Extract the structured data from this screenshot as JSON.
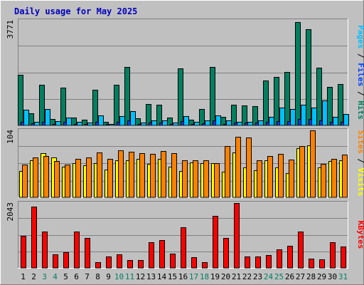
{
  "chart_data": {
    "type": "bar",
    "title": "Daily usage for May 2025",
    "days": [
      "1",
      "2",
      "3",
      "4",
      "5",
      "6",
      "7",
      "8",
      "9",
      "10",
      "11",
      "12",
      "13",
      "14",
      "15",
      "16",
      "17",
      "18",
      "19",
      "20",
      "21",
      "22",
      "23",
      "24",
      "25",
      "26",
      "27",
      "28",
      "29",
      "30",
      "31"
    ],
    "weekend_days": [
      "3",
      "4",
      "10",
      "11",
      "17",
      "18",
      "24",
      "25",
      "31"
    ],
    "panels": [
      {
        "id": "hits-panel",
        "ymax": 3771,
        "ymax_label": "3771",
        "side_label_parts": [
          {
            "text": "Pages",
            "color": "#00C0FF"
          },
          {
            "text": " / ",
            "color": "#000000"
          },
          {
            "text": "Files",
            "color": "#0040FF"
          },
          {
            "text": " / ",
            "color": "#000000"
          },
          {
            "text": "Hits",
            "color": "#008060"
          }
        ],
        "series": [
          {
            "name": "Hits",
            "color": "#008060",
            "values": [
              1810,
              440,
              1460,
              240,
              1370,
              270,
              210,
              1290,
              130,
              1450,
              2110,
              260,
              760,
              750,
              270,
              2060,
              200,
              600,
              2110,
              320,
              740,
              720,
              700,
              1610,
              1740,
              1930,
              3710,
              3460,
              2080,
              1390,
              1490
            ]
          },
          {
            "name": "Files",
            "color": "#0040FF",
            "values": [
              140,
              80,
              140,
              60,
              120,
              60,
              50,
              120,
              40,
              130,
              170,
              60,
              90,
              90,
              60,
              160,
              50,
              80,
              170,
              60,
              90,
              90,
              90,
              140,
              150,
              160,
              230,
              220,
              170,
              130,
              140
            ]
          },
          {
            "name": "Pages",
            "color": "#00C0FF",
            "values": [
              560,
              140,
              600,
              160,
              270,
              120,
              100,
              350,
              40,
              340,
              520,
              110,
              180,
              180,
              100,
              340,
              120,
              180,
              360,
              170,
              140,
              140,
              180,
              300,
              640,
              600,
              740,
              630,
              900,
              300,
              400
            ]
          }
        ]
      },
      {
        "id": "visits-panel",
        "ymax": 104,
        "ymax_label": "104",
        "side_label_parts": [
          {
            "text": "Sites",
            "color": "#FF8000"
          },
          {
            "text": " / ",
            "color": "#000000"
          },
          {
            "text": "Visits",
            "color": "#FFFF00"
          }
        ],
        "series": [
          {
            "name": "Visits",
            "color": "#FFFF00",
            "values": [
              41,
              57,
              69,
              62,
              48,
              53,
              50,
              53,
              43,
              57,
              58,
              60,
              52,
              60,
              48,
              41,
              54,
              53,
              53,
              40,
              70,
              46,
              42,
              58,
              47,
              38,
              76,
              81,
              46,
              56,
              57
            ]
          },
          {
            "name": "Sites",
            "color": "#FF8000",
            "values": [
              51,
              62,
              64,
              56,
              51,
              60,
              62,
              70,
              60,
              73,
              71,
              69,
              67,
              72,
              69,
              57,
              58,
              57,
              53,
              80,
              94,
              93,
              58,
              64,
              68,
              59,
              80,
              104,
              52,
              60,
              66
            ]
          }
        ]
      },
      {
        "id": "kbytes-panel",
        "ymax": 2043,
        "ymax_label": "2043",
        "side_label_parts": [
          {
            "text": "KBytes",
            "color": "#FF0000"
          }
        ],
        "series": [
          {
            "name": "KBytes",
            "color": "#FF0000",
            "values": [
              1000,
              1940,
              1150,
              430,
              490,
              1150,
              950,
              180,
              370,
              430,
              240,
              240,
              800,
              880,
              450,
              1280,
              330,
              170,
              1650,
              950,
              2040,
              370,
              370,
              400,
              580,
              700,
              1140,
              300,
              260,
              810,
              670
            ]
          }
        ]
      }
    ],
    "colors": {
      "background": "#C0C0C0",
      "gridline": "#808080",
      "title": "#0000C0",
      "weekday_label": "#000000",
      "weekend_label": "#008060"
    }
  }
}
